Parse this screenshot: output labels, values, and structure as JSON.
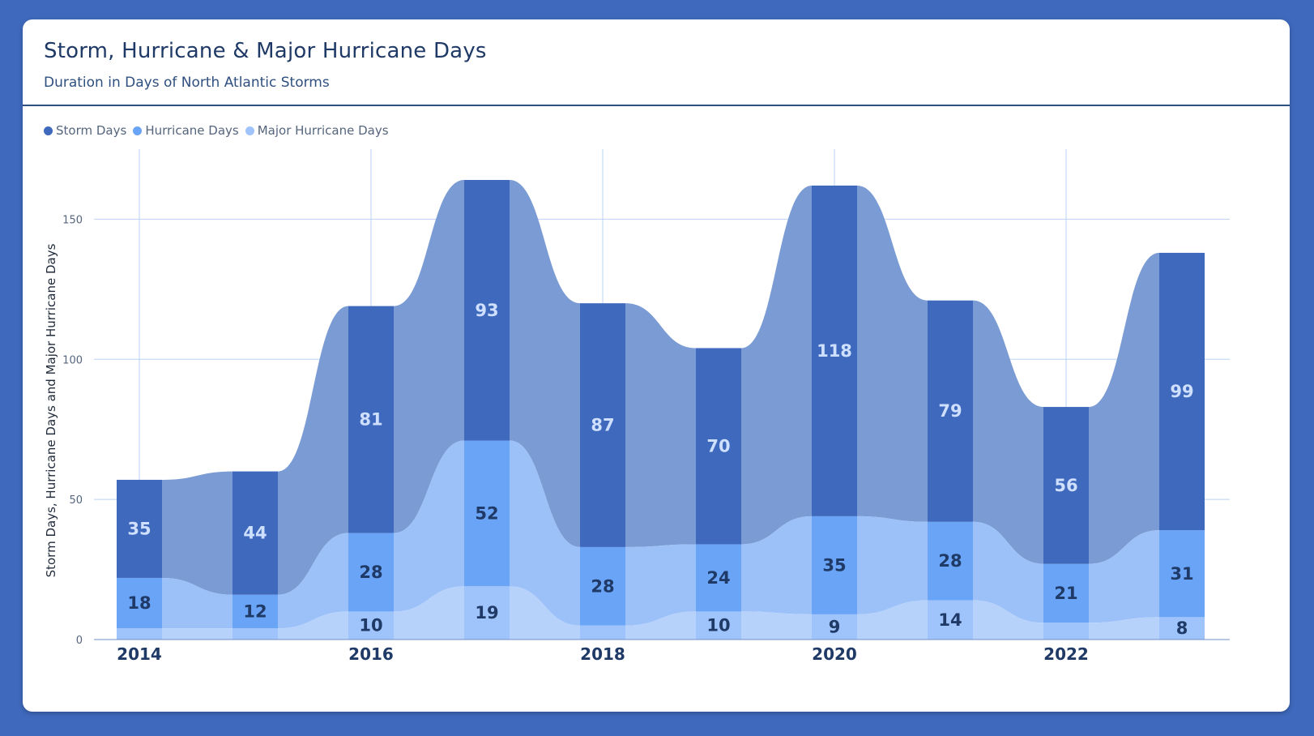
{
  "header": {
    "title": "Storm, Hurricane & Major Hurricane Days",
    "subtitle": "Duration in Days of North Atlantic Storms"
  },
  "colors": {
    "background": "#3f69bd",
    "storm": "#3f69bd",
    "hurricane": "#6aa4f7",
    "major": "#9fc4fb",
    "ribbon_storm": "#7a9bd3",
    "ribbon_hurricane": "#9cc0f8",
    "ribbon_major": "#b6d2fb",
    "label_light": "#cfe0ff",
    "label_dark": "#1f3a66",
    "grid": "#b9d3f5"
  },
  "chart_data": {
    "type": "bar",
    "stacked": true,
    "title": "Storm, Hurricane & Major Hurricane Days",
    "subtitle": "Duration in Days of North Atlantic Storms",
    "xlabel": "",
    "ylabel": "Storm Days, Hurricane Days and Major Hurricane Days",
    "ylim": [
      0,
      175
    ],
    "yticks": [
      0,
      50,
      100,
      150
    ],
    "categories": [
      "2014",
      "2015",
      "2016",
      "2017",
      "2018",
      "2019",
      "2020",
      "2021",
      "2022",
      "2023"
    ],
    "xtick_labels": [
      "2014",
      "",
      "2016",
      "",
      "2018",
      "",
      "2020",
      "",
      "2022",
      ""
    ],
    "legend_position": "top-left",
    "grid": true,
    "series": [
      {
        "name": "Major Hurricane Days",
        "values": [
          4,
          4,
          10,
          19,
          5,
          10,
          9,
          14,
          6,
          8
        ],
        "show_labels": [
          false,
          false,
          true,
          true,
          false,
          true,
          true,
          true,
          false,
          true
        ]
      },
      {
        "name": "Hurricane Days",
        "values": [
          18,
          12,
          28,
          52,
          28,
          24,
          35,
          28,
          21,
          31
        ],
        "show_labels": [
          true,
          true,
          true,
          true,
          true,
          true,
          true,
          true,
          true,
          true
        ]
      },
      {
        "name": "Storm Days",
        "values": [
          35,
          44,
          81,
          93,
          87,
          70,
          118,
          79,
          56,
          99
        ],
        "show_labels": [
          true,
          true,
          true,
          true,
          true,
          true,
          true,
          true,
          true,
          true
        ]
      }
    ],
    "legend": [
      "Storm Days",
      "Hurricane Days",
      "Major Hurricane Days"
    ]
  }
}
